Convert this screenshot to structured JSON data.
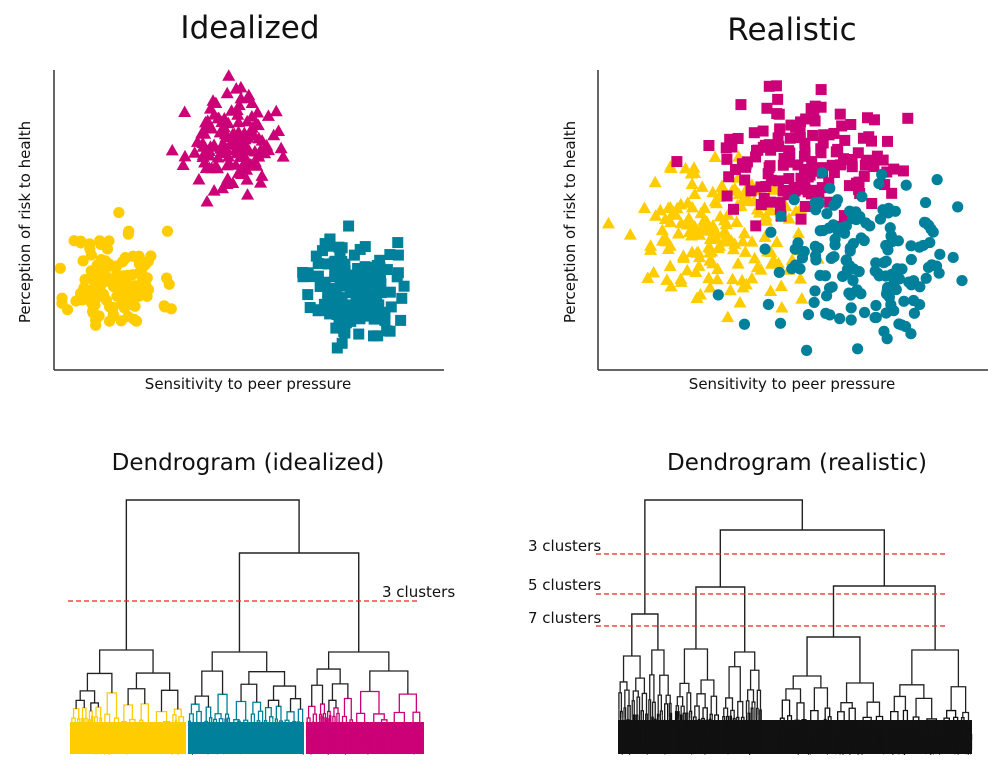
{
  "colors": {
    "yellow": "#FFCC00",
    "magenta": "#CC0077",
    "teal": "#00809A",
    "axis": "#333333",
    "cut_line": "#EE2222",
    "tree": "#222222"
  },
  "chart_data": [
    {
      "id": "idealized-scatter",
      "type": "scatter",
      "title": "Idealized",
      "xlabel": "Sensitivity to peer pressure",
      "ylabel": "Perception of risk to health",
      "xlim": [
        0,
        1
      ],
      "ylim": [
        0,
        1
      ],
      "ticks": "none",
      "grid": false,
      "legend": "none",
      "series": [
        {
          "name": "cluster-yellow",
          "color_key": "yellow",
          "marker": "circle",
          "center": [
            0.15,
            0.29
          ],
          "spread": [
            0.06,
            0.085
          ],
          "n": 130,
          "seed": 11
        },
        {
          "name": "cluster-magenta",
          "color_key": "magenta",
          "marker": "triangle",
          "center": [
            0.45,
            0.75
          ],
          "spread": [
            0.055,
            0.075
          ],
          "n": 140,
          "seed": 23
        },
        {
          "name": "cluster-teal",
          "color_key": "teal",
          "marker": "square",
          "center": [
            0.77,
            0.27
          ],
          "spread": [
            0.055,
            0.085
          ],
          "n": 150,
          "seed": 37
        }
      ]
    },
    {
      "id": "realistic-scatter",
      "type": "scatter",
      "title": "Realistic",
      "xlabel": "Sensitivity to peer pressure",
      "ylabel": "Perception of risk to health",
      "xlim": [
        0,
        1
      ],
      "ylim": [
        0,
        1
      ],
      "ticks": "none",
      "grid": false,
      "legend": "none",
      "series": [
        {
          "name": "cluster-yellow",
          "color_key": "yellow",
          "marker": "triangle",
          "center": [
            0.3,
            0.45
          ],
          "spread": [
            0.11,
            0.12
          ],
          "n": 170,
          "seed": 51
        },
        {
          "name": "cluster-magenta",
          "color_key": "magenta",
          "marker": "square",
          "center": [
            0.52,
            0.68
          ],
          "spread": [
            0.11,
            0.1
          ],
          "n": 150,
          "seed": 67
        },
        {
          "name": "cluster-teal",
          "color_key": "teal",
          "marker": "circle",
          "center": [
            0.68,
            0.38
          ],
          "spread": [
            0.12,
            0.13
          ],
          "n": 160,
          "seed": 79
        }
      ]
    },
    {
      "id": "idealized-dendrogram",
      "type": "dendrogram",
      "title": "Dendrogram (idealized)",
      "cut_lines": [
        {
          "label": "3 clusters",
          "clusters": 3
        }
      ],
      "leaf_groups": [
        {
          "color_key": "yellow",
          "leaves": 120
        },
        {
          "color_key": "teal",
          "leaves": 120
        },
        {
          "color_key": "magenta",
          "leaves": 120
        }
      ],
      "colored_leaves": true
    },
    {
      "id": "realistic-dendrogram",
      "type": "dendrogram",
      "title": "Dendrogram (realistic)",
      "cut_lines": [
        {
          "label": "3 clusters",
          "clusters": 3
        },
        {
          "label": "5 clusters",
          "clusters": 5
        },
        {
          "label": "7 clusters",
          "clusters": 7
        }
      ],
      "leaf_groups": [
        {
          "color_key": "tree",
          "leaves": 380
        }
      ],
      "colored_leaves": false
    }
  ]
}
